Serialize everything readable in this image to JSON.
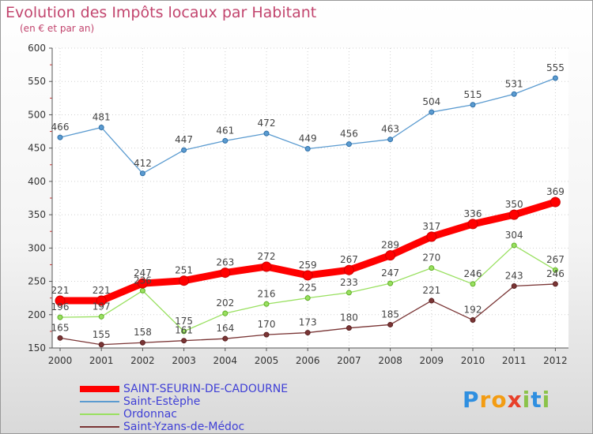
{
  "header": {
    "title": "Evolution des Impôts locaux par Habitant",
    "subtitle": "(en € et par an)"
  },
  "chart_data": {
    "type": "line",
    "title": "Evolution des Impôts locaux par Habitant",
    "subtitle": "(en € et par an)",
    "xlabel": "",
    "ylabel": "",
    "x": [
      "2000",
      "2001",
      "2002",
      "2003",
      "2004",
      "2005",
      "2006",
      "2007",
      "2008",
      "2009",
      "2010",
      "2011",
      "2012"
    ],
    "ylim": [
      150,
      600
    ],
    "yticks": [
      150,
      200,
      250,
      300,
      350,
      400,
      450,
      500,
      550,
      600
    ],
    "grid": true,
    "legend_position": "bottom-left",
    "series": [
      {
        "name": "SAINT-SEURIN-DE-CADOURNE",
        "color": "#ff0000",
        "emphasis": true,
        "values": [
          221,
          221,
          247,
          251,
          263,
          272,
          259,
          267,
          289,
          317,
          336,
          350,
          369
        ]
      },
      {
        "name": "Saint-Estèphe",
        "color": "#5b9bd0",
        "emphasis": false,
        "values": [
          466,
          481,
          412,
          447,
          461,
          472,
          449,
          456,
          463,
          504,
          515,
          531,
          555
        ]
      },
      {
        "name": "Ordonnac",
        "color": "#99e060",
        "emphasis": false,
        "values": [
          196,
          197,
          236,
          175,
          202,
          216,
          225,
          233,
          247,
          270,
          246,
          304,
          267
        ]
      },
      {
        "name": "Saint-Yzans-de-Médoc",
        "color": "#7a3535",
        "emphasis": false,
        "values": [
          165,
          155,
          158,
          161,
          164,
          170,
          173,
          180,
          185,
          221,
          192,
          243,
          246
        ]
      }
    ]
  },
  "brand": {
    "letters": [
      "P",
      "r",
      "o",
      "x",
      "i",
      "t",
      "i"
    ],
    "colors": [
      "#2f8fe0",
      "#f39c12",
      "#f39c12",
      "#e8402a",
      "#8bc34a",
      "#2f8fe0",
      "#8bc34a"
    ]
  }
}
